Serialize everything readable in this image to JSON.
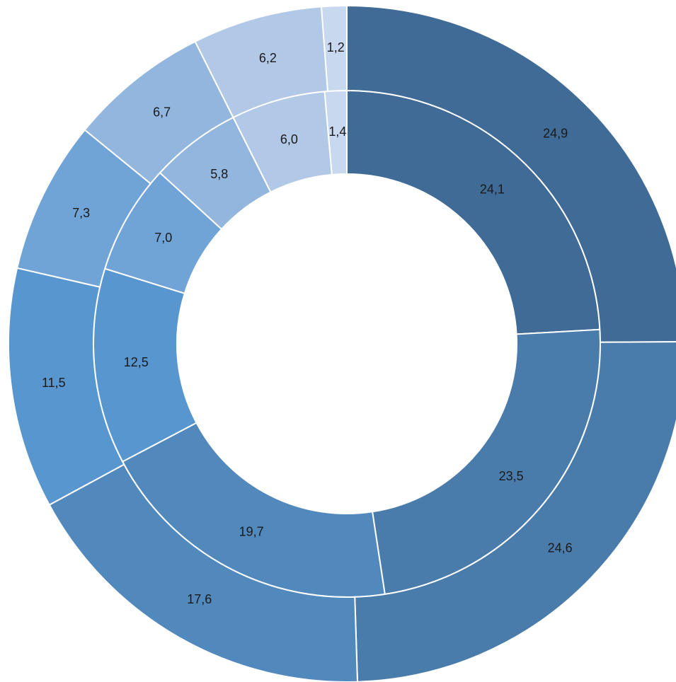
{
  "chart_data": {
    "type": "donut",
    "colors": [
      "#3f6b96",
      "#4a7cab",
      "#5289bd",
      "#5896cf",
      "#70a3d6",
      "#93b6de",
      "#b1c8e6",
      "#c8d8ef"
    ],
    "series": [
      {
        "values": [
          24.1,
          23.5,
          19.7,
          12.5,
          7.0,
          5.8,
          6.0,
          1.4
        ],
        "value_labels": [
          "24,1",
          "23,5",
          "19,7",
          "12,5",
          "7,0",
          "5,8",
          "6,0",
          "1,4"
        ]
      },
      {
        "values": [
          24.9,
          24.6,
          17.6,
          11.5,
          7.3,
          6.7,
          6.2,
          1.2
        ],
        "value_labels": [
          "24,9",
          "24,6",
          "17,6",
          "11,5",
          "7,3",
          "6,7",
          "6,2",
          "1,2"
        ]
      }
    ]
  }
}
